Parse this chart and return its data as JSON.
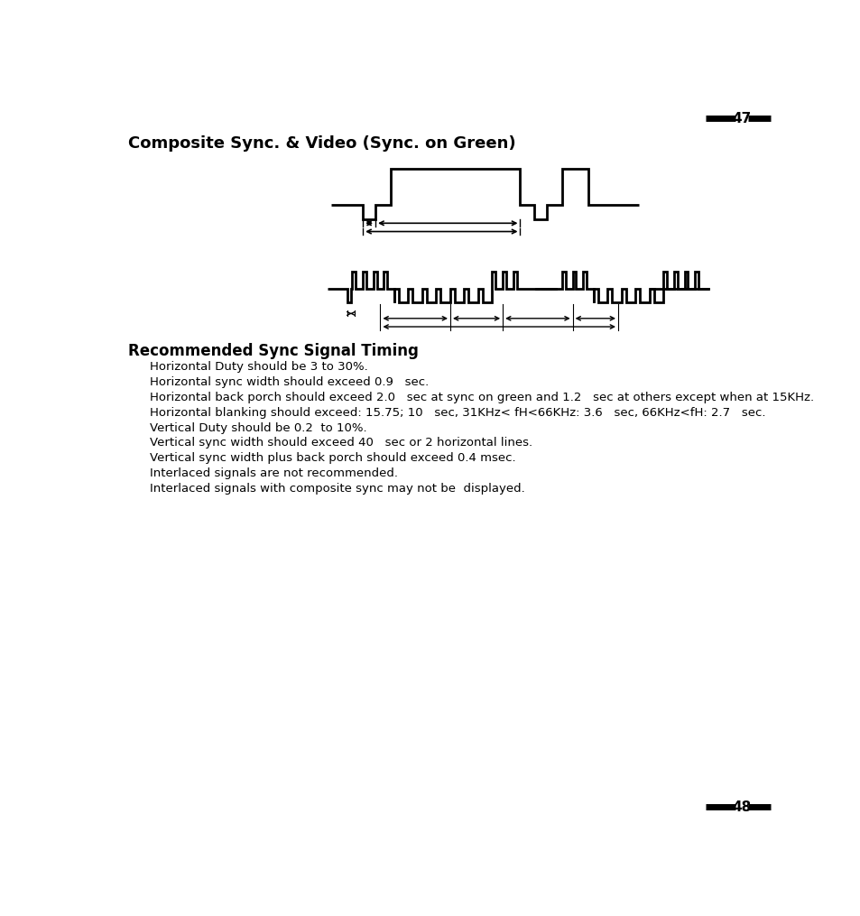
{
  "title_composite": "Composite Sync. & Video (Sync. on Green)",
  "section_title": "Recommended Sync Signal Timing",
  "bullet_lines": [
    "Horizontal Duty should be 3 to 30%.",
    "Horizontal sync width should exceed 0.9   sec.",
    "Horizontal back porch should exceed 2.0   sec at sync on green and 1.2   sec at others except when at 15KHz.",
    "Horizontal blanking should exceed: 15.75; 10   sec, 31KHz< fH<66KHz: 3.6   sec, 66KHz<fH: 2.7   sec.",
    "Vertical Duty should be 0.2  to 10%.",
    "Vertical sync width should exceed 40   sec or 2 horizontal lines.",
    "Vertical sync width plus back porch should exceed 0.4 msec.",
    "Interlaced signals are not recommended.",
    "Interlaced signals with composite sync may not be  displayed."
  ],
  "bg_color": "#ffffff",
  "line_color": "#000000"
}
